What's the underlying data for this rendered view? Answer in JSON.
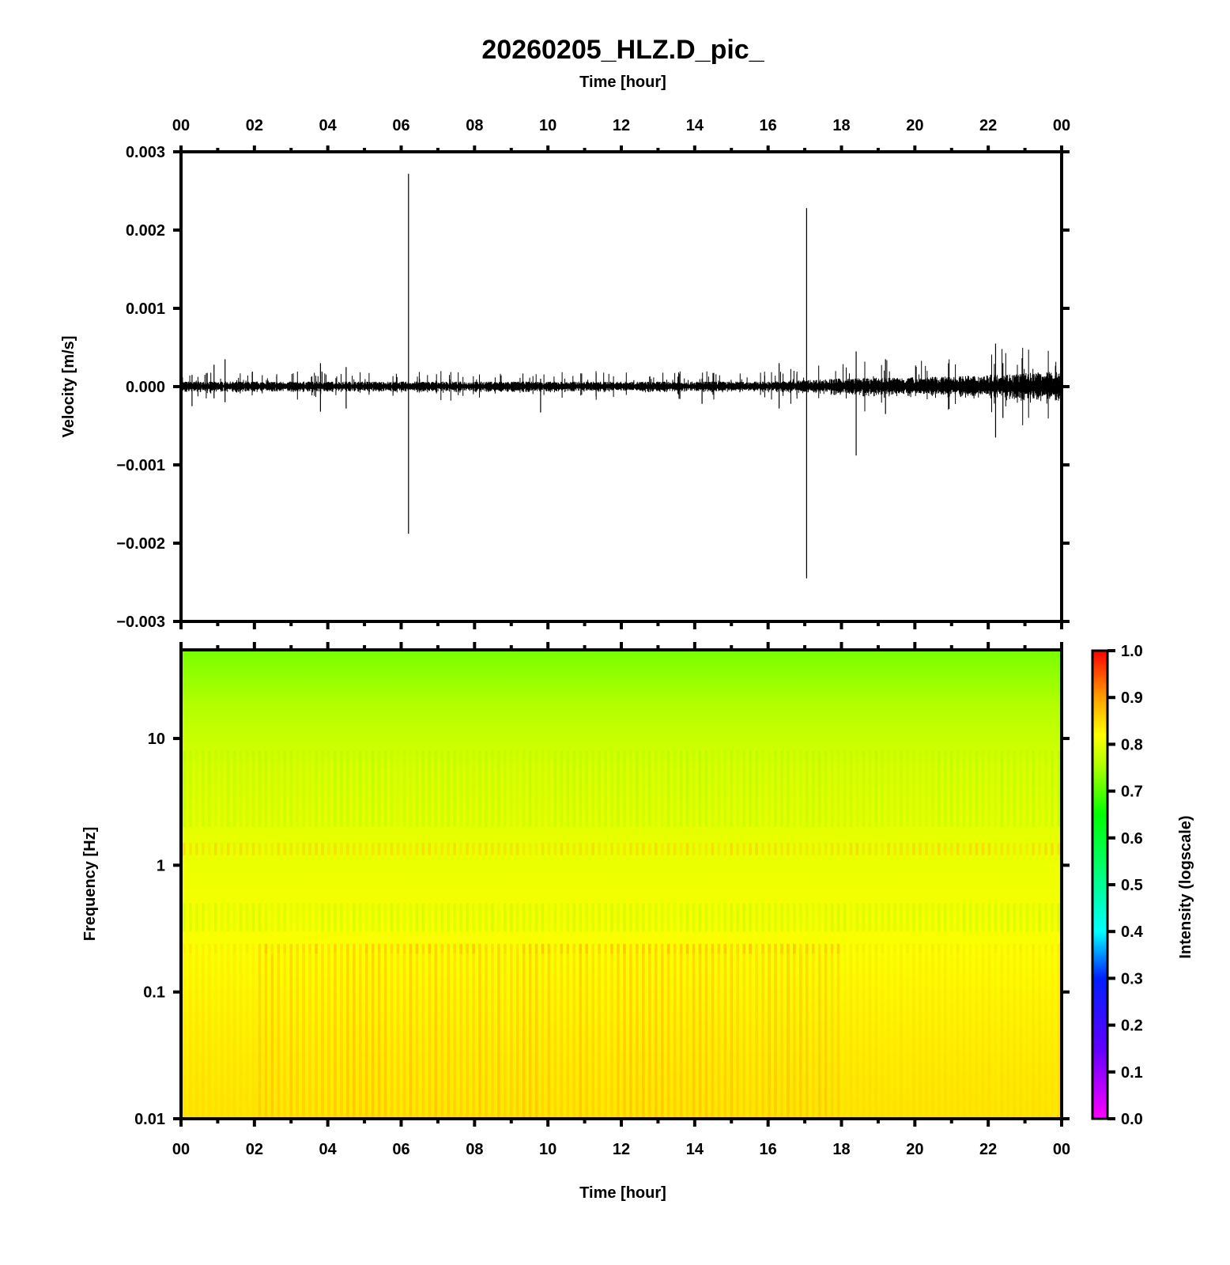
{
  "title": "20260205_HLZ.D_pic_",
  "chart_data": [
    {
      "type": "line",
      "top_xlabel": "Time [hour]",
      "ylabel": "Velocity [m/s]",
      "xlim": [
        0,
        24
      ],
      "ylim": [
        -0.003,
        0.003
      ],
      "x_ticks": [
        "00",
        "02",
        "04",
        "06",
        "08",
        "10",
        "12",
        "14",
        "16",
        "18",
        "20",
        "22",
        "00"
      ],
      "y_ticks": [
        "0.003",
        "0.002",
        "0.001",
        "0.000",
        "−0.001",
        "−0.002",
        "−0.003"
      ],
      "y_tick_values": [
        0.003,
        0.002,
        0.001,
        0.0,
        -0.001,
        -0.002,
        -0.003
      ],
      "series": [
        {
          "values_note": "",
          "noise_envelope": [
            {
              "x": 0,
              "amp": 5e-05
            },
            {
              "x": 16,
              "amp": 5e-05
            },
            {
              "x": 18,
              "amp": 8e-05
            },
            {
              "x": 21,
              "amp": 0.0001
            },
            {
              "x": 24,
              "amp": 0.00015
            }
          ],
          "spikes": [
            {
              "x": 0.3,
              "max": 0.00015,
              "min": -0.00025
            },
            {
              "x": 0.9,
              "max": 0.00028,
              "min": -0.00015
            },
            {
              "x": 1.2,
              "max": 0.00035,
              "min": -0.0002
            },
            {
              "x": 3.8,
              "max": 0.0003,
              "min": -0.00032
            },
            {
              "x": 4.5,
              "max": 0.00025,
              "min": -0.00028
            },
            {
              "x": 6.2,
              "max": 0.00272,
              "min": -0.00188
            },
            {
              "x": 9.8,
              "max": 0.0001,
              "min": -0.00033
            },
            {
              "x": 14.2,
              "max": 0.0001,
              "min": -0.00022
            },
            {
              "x": 16.3,
              "max": 0.0003,
              "min": -0.00028
            },
            {
              "x": 17.05,
              "max": 0.00228,
              "min": -0.00245
            },
            {
              "x": 18.4,
              "max": 0.00045,
              "min": -0.00088
            },
            {
              "x": 19.2,
              "max": 0.00035,
              "min": -0.00035
            },
            {
              "x": 22.2,
              "max": 0.00055,
              "min": -0.00065
            },
            {
              "x": 22.4,
              "max": 0.0003,
              "min": -0.0004
            }
          ]
        }
      ]
    },
    {
      "type": "heatmap",
      "xlabel": "Time [hour]",
      "ylabel": "Frequency [Hz]",
      "xlim": [
        0,
        24
      ],
      "ylim": [
        0.01,
        50
      ],
      "y_scale": "log",
      "x_ticks": [
        "00",
        "02",
        "04",
        "06",
        "08",
        "10",
        "12",
        "14",
        "16",
        "18",
        "20",
        "22",
        "00"
      ],
      "y_ticks": [
        "10",
        "1",
        "0.1",
        "0.01"
      ],
      "y_tick_values": [
        10,
        1,
        0.1,
        0.01
      ],
      "colorbar": {
        "label": "Intensity (logscale)",
        "range": [
          0.0,
          1.0
        ],
        "ticks": [
          "1.0",
          "0.9",
          "0.8",
          "0.7",
          "0.6",
          "0.5",
          "0.4",
          "0.3",
          "0.2",
          "0.1",
          "0.0"
        ],
        "colors": [
          "#ff00ff",
          "#8000ff",
          "#0000ff",
          "#0080ff",
          "#00ffff",
          "#00ff80",
          "#00ff00",
          "#80ff00",
          "#ffff00",
          "#ff8000",
          "#ff0000"
        ]
      },
      "intensity_profile": [
        {
          "freq": 50,
          "value": 0.68
        },
        {
          "freq": 10,
          "value": 0.75
        },
        {
          "freq": 1,
          "value": 0.79
        },
        {
          "freq": 0.1,
          "value": 0.81
        },
        {
          "freq": 0.01,
          "value": 0.84
        }
      ]
    }
  ]
}
